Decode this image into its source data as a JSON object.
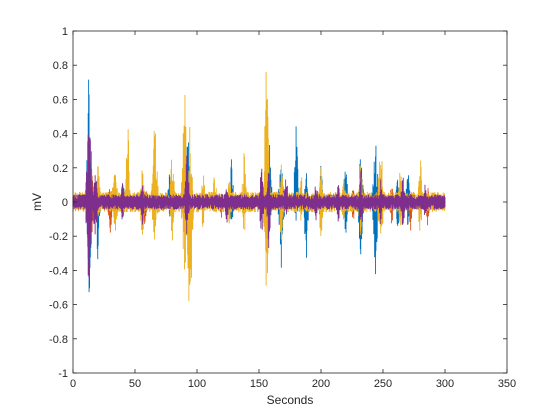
{
  "chart_data": {
    "type": "line",
    "title": "",
    "xlabel": "Seconds",
    "ylabel": "mV",
    "xlim": [
      0,
      350
    ],
    "ylim": [
      -1,
      1
    ],
    "xticks": [
      0,
      50,
      100,
      150,
      200,
      250,
      300,
      350
    ],
    "yticks": [
      -1,
      -0.8,
      -0.6,
      -0.4,
      -0.2,
      0,
      0.2,
      0.4,
      0.6,
      0.8,
      1
    ],
    "xtick_labels": [
      "0",
      "50",
      "100",
      "150",
      "200",
      "250",
      "300",
      "350"
    ],
    "ytick_labels": [
      "-1",
      "-0.8",
      "-0.6",
      "-0.4",
      "-0.2",
      "0",
      "0.2",
      "0.4",
      "0.6",
      "0.8",
      "1"
    ],
    "grid": false,
    "signal_span": [
      0,
      300
    ],
    "series": [
      {
        "color": "#0072BD",
        "baseline_amplitude": 0.02,
        "bursts": [
          {
            "x": 13,
            "max": 0.85,
            "min": -0.6,
            "width": 4
          },
          {
            "x": 20,
            "max": 0.2,
            "min": -0.35,
            "width": 3
          },
          {
            "x": 40,
            "max": 0.15,
            "min": -0.15,
            "width": 3
          },
          {
            "x": 78,
            "max": 0.2,
            "min": -0.1,
            "width": 3
          },
          {
            "x": 93,
            "max": 0.55,
            "min": -0.2,
            "width": 4
          },
          {
            "x": 128,
            "max": 0.3,
            "min": -0.2,
            "width": 3
          },
          {
            "x": 158,
            "max": 0.45,
            "min": -0.25,
            "width": 4
          },
          {
            "x": 168,
            "max": 0.3,
            "min": -0.4,
            "width": 4
          },
          {
            "x": 180,
            "max": 0.55,
            "min": -0.15,
            "width": 3
          },
          {
            "x": 188,
            "max": 0.2,
            "min": -0.45,
            "width": 3
          },
          {
            "x": 200,
            "max": 0.25,
            "min": -0.2,
            "width": 3
          },
          {
            "x": 220,
            "max": 0.25,
            "min": -0.25,
            "width": 3
          },
          {
            "x": 232,
            "max": 0.3,
            "min": -0.35,
            "width": 4
          },
          {
            "x": 244,
            "max": 0.4,
            "min": -0.45,
            "width": 4
          },
          {
            "x": 262,
            "max": 0.2,
            "min": -0.2,
            "width": 3
          },
          {
            "x": 270,
            "max": 0.25,
            "min": -0.15,
            "width": 3
          }
        ]
      },
      {
        "color": "#D95319",
        "baseline_amplitude": 0.02,
        "bursts": [
          {
            "x": 15,
            "max": 0.2,
            "min": -0.25,
            "width": 3
          },
          {
            "x": 30,
            "max": 0.1,
            "min": -0.2,
            "width": 4
          },
          {
            "x": 58,
            "max": 0.15,
            "min": -0.15,
            "width": 3
          },
          {
            "x": 95,
            "max": 0.15,
            "min": -0.2,
            "width": 4
          },
          {
            "x": 120,
            "max": 0.08,
            "min": -0.12,
            "width": 3
          },
          {
            "x": 156,
            "max": 0.15,
            "min": -0.45,
            "width": 3
          },
          {
            "x": 168,
            "max": 0.1,
            "min": -0.1,
            "width": 3
          },
          {
            "x": 226,
            "max": 0.1,
            "min": -0.15,
            "width": 3
          },
          {
            "x": 257,
            "max": 0.12,
            "min": -0.2,
            "width": 3
          },
          {
            "x": 272,
            "max": 0.1,
            "min": -0.2,
            "width": 3
          },
          {
            "x": 286,
            "max": 0.1,
            "min": -0.15,
            "width": 3
          }
        ]
      },
      {
        "color": "#EDB120",
        "baseline_amplitude": 0.04,
        "bursts": [
          {
            "x": 20,
            "max": 0.25,
            "min": -0.15,
            "width": 4
          },
          {
            "x": 34,
            "max": 0.3,
            "min": -0.2,
            "width": 4
          },
          {
            "x": 44,
            "max": 0.6,
            "min": -0.1,
            "width": 3
          },
          {
            "x": 56,
            "max": 0.3,
            "min": -0.3,
            "width": 3
          },
          {
            "x": 66,
            "max": 0.55,
            "min": -0.3,
            "width": 4
          },
          {
            "x": 80,
            "max": 0.45,
            "min": -0.25,
            "width": 3
          },
          {
            "x": 90,
            "max": 0.73,
            "min": -0.5,
            "width": 4
          },
          {
            "x": 94,
            "max": 0.55,
            "min": -0.98,
            "width": 4
          },
          {
            "x": 105,
            "max": 0.2,
            "min": -0.2,
            "width": 3
          },
          {
            "x": 114,
            "max": 0.25,
            "min": -0.1,
            "width": 3
          },
          {
            "x": 126,
            "max": 0.2,
            "min": -0.15,
            "width": 3
          },
          {
            "x": 138,
            "max": 0.35,
            "min": -0.25,
            "width": 3
          },
          {
            "x": 156,
            "max": 0.88,
            "min": -0.6,
            "width": 4
          },
          {
            "x": 168,
            "max": 0.3,
            "min": -0.3,
            "width": 3
          },
          {
            "x": 184,
            "max": 0.2,
            "min": -0.15,
            "width": 3
          },
          {
            "x": 200,
            "max": 0.25,
            "min": -0.3,
            "width": 3
          },
          {
            "x": 218,
            "max": 0.2,
            "min": -0.15,
            "width": 3
          },
          {
            "x": 232,
            "max": 0.25,
            "min": -0.25,
            "width": 3
          },
          {
            "x": 248,
            "max": 0.45,
            "min": -0.35,
            "width": 4
          },
          {
            "x": 264,
            "max": 0.25,
            "min": -0.2,
            "width": 3
          },
          {
            "x": 280,
            "max": 0.35,
            "min": -0.25,
            "width": 3
          },
          {
            "x": 292,
            "max": 0.06,
            "min": -0.06,
            "width": 6
          }
        ]
      },
      {
        "color": "#7E2F8E",
        "baseline_amplitude": 0.03,
        "bursts": [
          {
            "x": 13,
            "max": 0.62,
            "min": -0.68,
            "width": 4
          },
          {
            "x": 18,
            "max": 0.25,
            "min": -0.3,
            "width": 3
          },
          {
            "x": 40,
            "max": 0.12,
            "min": -0.12,
            "width": 3
          },
          {
            "x": 56,
            "max": 0.12,
            "min": -0.15,
            "width": 3
          },
          {
            "x": 92,
            "max": 0.35,
            "min": -0.25,
            "width": 3
          },
          {
            "x": 124,
            "max": 0.12,
            "min": -0.15,
            "width": 3
          },
          {
            "x": 152,
            "max": 0.3,
            "min": -0.3,
            "width": 3
          },
          {
            "x": 158,
            "max": 0.25,
            "min": -0.35,
            "width": 3
          },
          {
            "x": 172,
            "max": 0.2,
            "min": -0.15,
            "width": 3
          },
          {
            "x": 196,
            "max": 0.15,
            "min": -0.12,
            "width": 3
          },
          {
            "x": 214,
            "max": 0.12,
            "min": -0.15,
            "width": 3
          },
          {
            "x": 232,
            "max": 0.2,
            "min": -0.25,
            "width": 3
          },
          {
            "x": 248,
            "max": 0.15,
            "min": -0.15,
            "width": 3
          },
          {
            "x": 266,
            "max": 0.18,
            "min": -0.2,
            "width": 3
          },
          {
            "x": 284,
            "max": 0.12,
            "min": -0.12,
            "width": 3
          }
        ]
      }
    ]
  }
}
